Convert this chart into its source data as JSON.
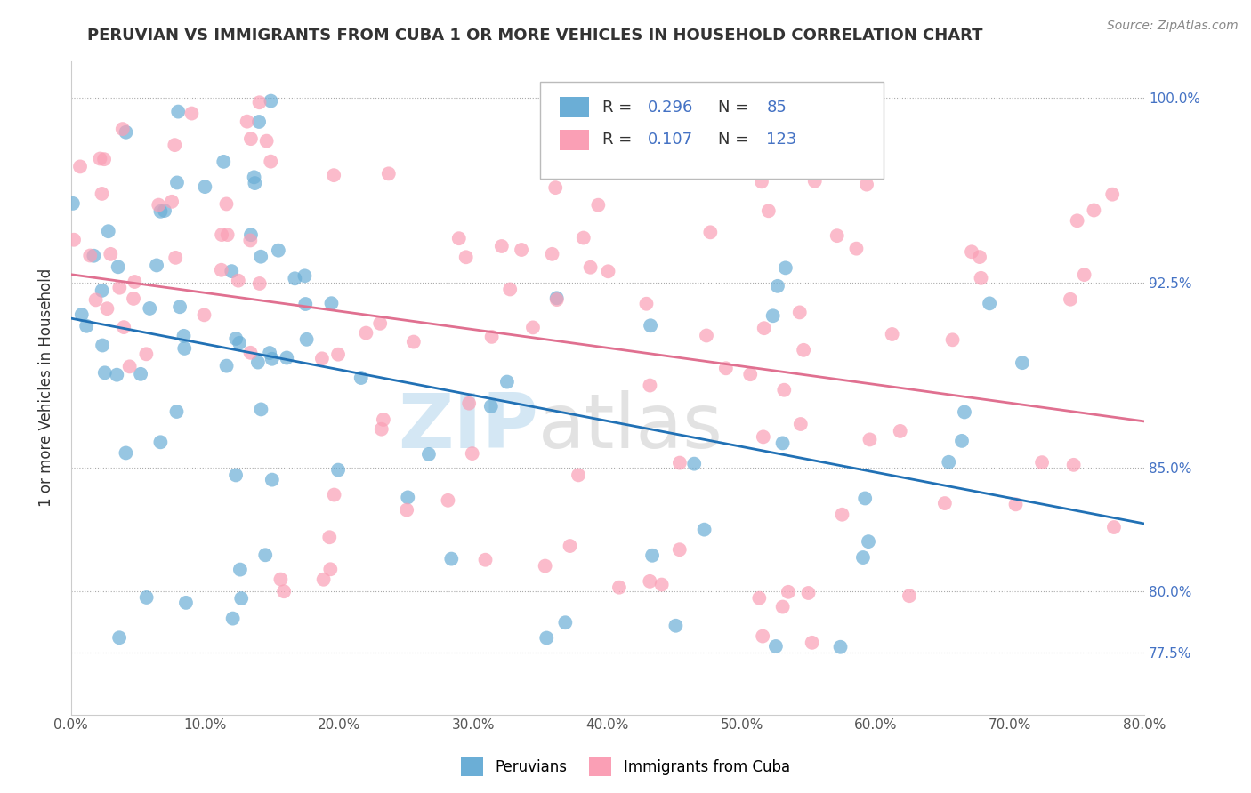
{
  "title": "PERUVIAN VS IMMIGRANTS FROM CUBA 1 OR MORE VEHICLES IN HOUSEHOLD CORRELATION CHART",
  "source_text": "Source: ZipAtlas.com",
  "ylabel": "1 or more Vehicles in Household",
  "legend_labels": [
    "Peruvians",
    "Immigrants from Cuba"
  ],
  "blue_R": 0.296,
  "blue_N": 85,
  "pink_R": 0.107,
  "pink_N": 123,
  "x_min": 0.0,
  "x_max": 80.0,
  "y_min": 75.0,
  "y_max": 101.5,
  "y_ticks": [
    77.5,
    80.0,
    85.0,
    92.5,
    100.0
  ],
  "blue_color": "#6baed6",
  "pink_color": "#fa9fb5",
  "blue_line_color": "#2171b5",
  "pink_line_color": "#e07090",
  "watermark_zip": "ZIP",
  "watermark_atlas": "atlas"
}
